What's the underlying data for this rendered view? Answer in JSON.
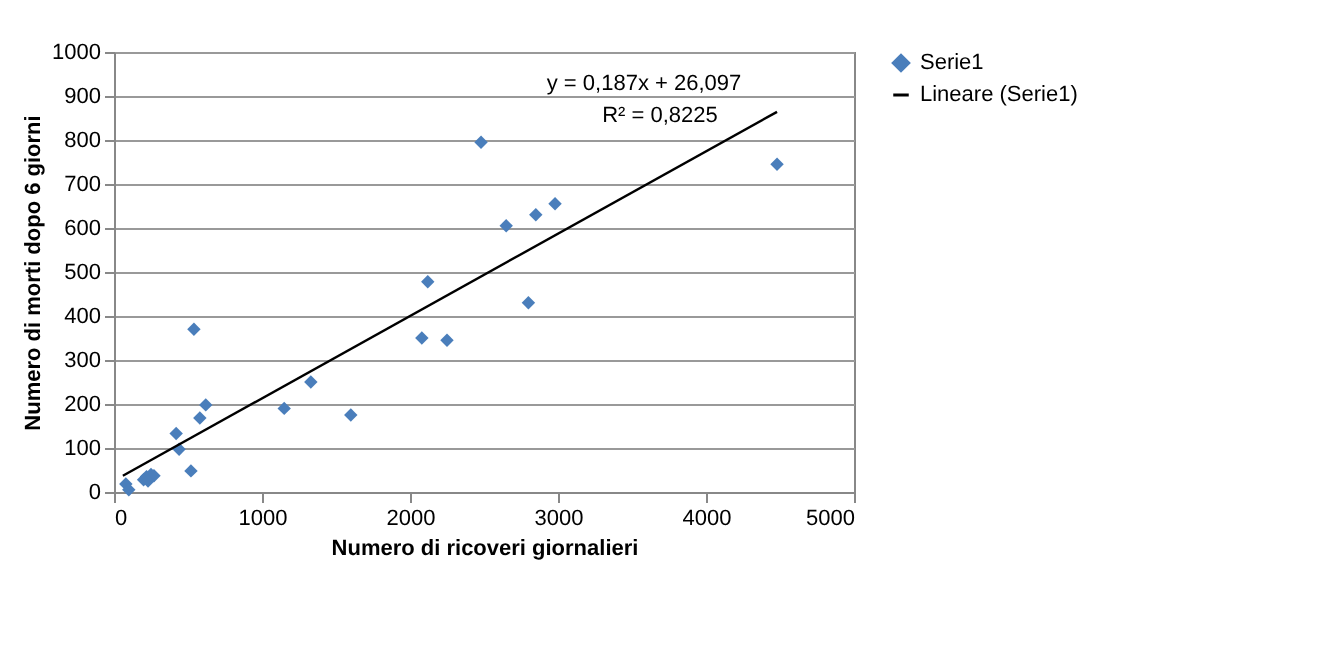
{
  "chart_data": {
    "type": "scatter",
    "xlabel": "Numero di ricoveri giornalieri",
    "ylabel": "Numero di morti dopo 6 giorni",
    "xlim": [
      0,
      5000
    ],
    "xticks": [
      0,
      1000,
      2000,
      3000,
      4000,
      5000
    ],
    "ylim": [
      0,
      1000
    ],
    "yticks": [
      0,
      100,
      200,
      300,
      400,
      500,
      600,
      700,
      800,
      900,
      1000
    ],
    "grid": "y",
    "legend": "right",
    "series": [
      {
        "name": "Serie1",
        "color": "#4a7ebb",
        "marker": "diamond",
        "x": [
          2480,
          4480,
          2980,
          2850,
          2650,
          2120,
          2800,
          540,
          2080,
          2250,
          1330,
          620,
          580,
          1150,
          1600,
          420,
          440,
          520,
          80,
          100,
          200,
          220,
          250,
          270,
          230
        ],
        "values": [
          795,
          745,
          655,
          630,
          605,
          478,
          430,
          370,
          350,
          345,
          250,
          198,
          168,
          190,
          175,
          133,
          97,
          48,
          18,
          5,
          28,
          35,
          40,
          37,
          25
        ]
      },
      {
        "name": "Lineare (Serie1)",
        "color": "#000000",
        "type": "line",
        "marker": "none",
        "line_style": "solid",
        "x": [
          60,
          4480
        ],
        "values": [
          37,
          864
        ]
      }
    ],
    "annotations": [
      "y = 0,187x + 26,097",
      "R² = 0,8225"
    ]
  }
}
